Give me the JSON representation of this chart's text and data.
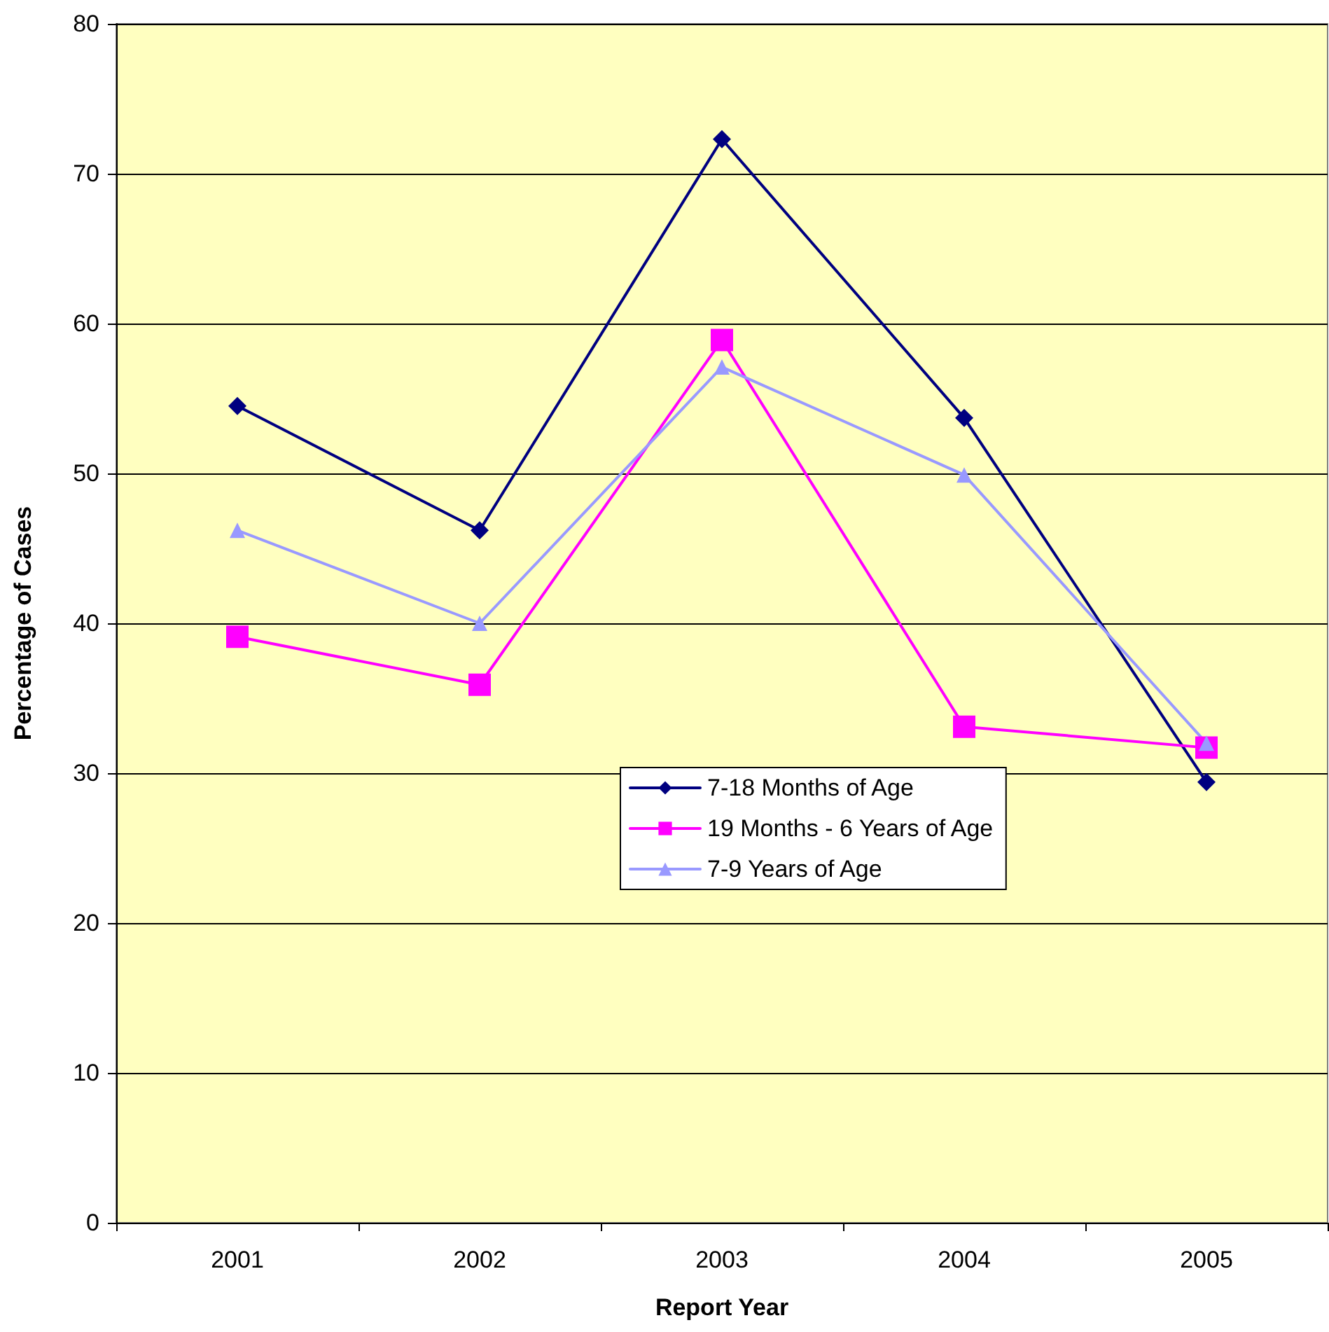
{
  "chart_data": {
    "type": "line",
    "xlabel": "Report Year",
    "ylabel": "Percentage of Cases",
    "categories": [
      "2001",
      "2002",
      "2003",
      "2004",
      "2005"
    ],
    "series": [
      {
        "name": "7-18 Months of Age",
        "color": "#000080",
        "marker": "diamond",
        "values": [
          54.5,
          46.2,
          72.3,
          53.7,
          29.4
        ]
      },
      {
        "name": "19 Months - 6 Years of Age",
        "color": "#ff00ff",
        "marker": "square",
        "values": [
          39.1,
          35.9,
          58.9,
          33.1,
          31.7
        ]
      },
      {
        "name": "7-9 Years of Age",
        "color": "#9999ff",
        "marker": "triangle",
        "values": [
          46.2,
          40.0,
          57.1,
          49.9,
          32.0
        ]
      }
    ],
    "ylim": [
      0,
      80
    ],
    "yticks": [
      0,
      10,
      20,
      30,
      40,
      50,
      60,
      70,
      80
    ],
    "grid": "y",
    "legend": "center",
    "line_style": "solid"
  }
}
